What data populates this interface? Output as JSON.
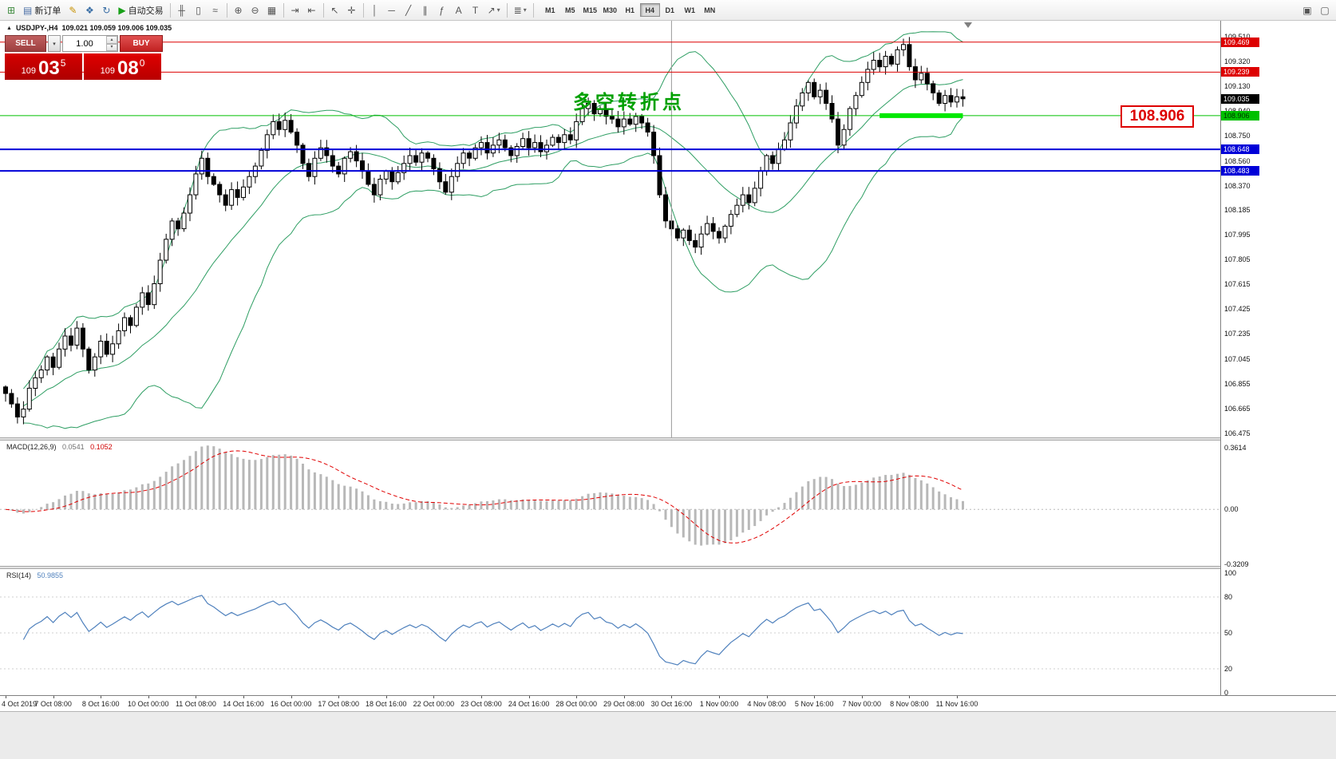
{
  "icons": {
    "caret_down": "▾",
    "caret_up": "▴",
    "collapse": "▲"
  },
  "colors": {
    "bollinger": "#2e9e63",
    "macd_bar": "#b8b8b8",
    "macd_signal": "#e00000",
    "rsi_line": "#4f81bd",
    "highlight": "#00e800",
    "resistance": "#dd0000",
    "support_blue": "#0000d8",
    "support_green": "#00c000",
    "sell_button": "#b25050",
    "buy_button": "#d23b3b",
    "price_panel": "#d40000"
  },
  "toolbar": {
    "items": [
      {
        "type": "icon",
        "name": "new-chart-icon",
        "glyph": "⊞",
        "color": "#3c8a3c"
      },
      {
        "type": "button",
        "name": "new-order-button",
        "glyph": "▤",
        "color": "#4a6fa5",
        "label": "新订单"
      },
      {
        "type": "icon",
        "name": "metaeditor-icon",
        "glyph": "✎",
        "color": "#c79100"
      },
      {
        "type": "icon",
        "name": "market-watch-icon",
        "glyph": "❖",
        "color": "#3a6ea5"
      },
      {
        "type": "icon",
        "name": "refresh-icon",
        "glyph": "↻",
        "color": "#3a6ea5"
      },
      {
        "type": "button",
        "name": "autotrading-button",
        "glyph": "▶",
        "color": "#18a018",
        "label": "自动交易"
      },
      {
        "type": "sep"
      },
      {
        "type": "icon",
        "name": "bar-chart-mode-icon",
        "glyph": "╫"
      },
      {
        "type": "icon",
        "name": "candlestick-mode-icon",
        "glyph": "▯"
      },
      {
        "type": "icon",
        "name": "line-chart-mode-icon",
        "glyph": "≈"
      },
      {
        "type": "sep"
      },
      {
        "type": "icon",
        "name": "zoom-in-icon",
        "glyph": "⊕"
      },
      {
        "type": "icon",
        "name": "zoom-out-icon",
        "glyph": "⊖"
      },
      {
        "type": "icon",
        "name": "tile-windows-icon",
        "glyph": "▦"
      },
      {
        "type": "sep"
      },
      {
        "type": "icon",
        "name": "auto-scroll-icon",
        "glyph": "⇥"
      },
      {
        "type": "icon",
        "name": "chart-shift-icon",
        "glyph": "⇤"
      },
      {
        "type": "sep"
      },
      {
        "type": "icon",
        "name": "cursor-icon",
        "glyph": "↖"
      },
      {
        "type": "icon",
        "name": "crosshair-icon",
        "glyph": "✛"
      },
      {
        "type": "sep"
      },
      {
        "type": "icon",
        "name": "vertical-line-icon",
        "glyph": "│"
      },
      {
        "type": "icon",
        "name": "horizontal-line-icon",
        "glyph": "─"
      },
      {
        "type": "icon",
        "name": "trendline-icon",
        "glyph": "╱"
      },
      {
        "type": "icon",
        "name": "equidistant-channel-icon",
        "glyph": "∥"
      },
      {
        "type": "icon",
        "name": "fibonacci-icon",
        "glyph": "ƒ"
      },
      {
        "type": "icon",
        "name": "text-icon",
        "glyph": "A"
      },
      {
        "type": "icon",
        "name": "text-label-icon",
        "glyph": "T"
      },
      {
        "type": "icon",
        "name": "arrows-tool-icon",
        "glyph": "↗",
        "caret": true
      },
      {
        "type": "sep"
      },
      {
        "type": "icon",
        "name": "indicator-list-icon",
        "glyph": "≣",
        "caret": true
      },
      {
        "type": "sep"
      }
    ],
    "timeframes": [
      "M1",
      "M5",
      "M15",
      "M30",
      "H1",
      "H4",
      "D1",
      "W1",
      "MN"
    ],
    "active_timeframe": "H4",
    "right_items": [
      {
        "name": "new-window-icon",
        "glyph": "▣"
      },
      {
        "name": "window-list-icon",
        "glyph": "▢"
      }
    ]
  },
  "trade_panel": {
    "sell_label": "SELL",
    "buy_label": "BUY",
    "volume": "1.00",
    "sell_price": {
      "prefix": "109",
      "big": "03",
      "sup": "5"
    },
    "buy_price": {
      "prefix": "109",
      "big": "08",
      "sup": "0"
    }
  },
  "chart": {
    "title": "USDJPY-,H4",
    "ohlc_text": "109.021 109.059 109.006 109.035",
    "annotation": "多空转折点",
    "level_callout": "108.906"
  },
  "indicators": {
    "macd": {
      "name": "MACD(12,26,9)",
      "value_main": "0.0541",
      "value_signal": "0.1052"
    },
    "rsi": {
      "name": "RSI(14)",
      "value": "50.9855"
    }
  },
  "chart_data": {
    "type": "candlestick",
    "symbol": "USDJPY-",
    "timeframe": "H4",
    "ohlc_current": {
      "open": 109.021,
      "high": 109.059,
      "low": 109.006,
      "close": 109.035
    },
    "current_price": 109.035,
    "main_range": [
      106.438,
      109.632
    ],
    "closes": [
      106.78,
      106.7,
      106.6,
      106.66,
      106.82,
      106.9,
      106.96,
      107.06,
      106.98,
      107.12,
      107.22,
      107.15,
      107.28,
      107.12,
      106.96,
      107.06,
      107.18,
      107.08,
      107.16,
      107.26,
      107.36,
      107.3,
      107.44,
      107.55,
      107.46,
      107.62,
      107.8,
      107.96,
      108.1,
      108.04,
      108.16,
      108.3,
      108.46,
      108.58,
      108.44,
      108.38,
      108.3,
      108.22,
      108.34,
      108.28,
      108.36,
      108.44,
      108.52,
      108.64,
      108.76,
      108.86,
      108.8,
      108.87,
      108.78,
      108.68,
      108.54,
      108.44,
      108.58,
      108.66,
      108.6,
      108.52,
      108.46,
      108.58,
      108.63,
      108.56,
      108.48,
      108.38,
      108.3,
      108.42,
      108.48,
      108.4,
      108.47,
      108.54,
      108.6,
      108.55,
      108.62,
      108.58,
      108.5,
      108.4,
      108.32,
      108.44,
      108.54,
      108.62,
      108.58,
      108.66,
      108.7,
      108.62,
      108.68,
      108.72,
      108.66,
      108.6,
      108.67,
      108.73,
      108.66,
      108.7,
      108.63,
      108.68,
      108.74,
      108.7,
      108.76,
      108.72,
      108.86,
      108.96,
      109.0,
      108.92,
      108.96,
      108.9,
      108.88,
      108.82,
      108.88,
      108.84,
      108.9,
      108.85,
      108.78,
      108.6,
      108.3,
      108.1,
      108.04,
      107.97,
      108.03,
      107.95,
      107.9,
      108.0,
      108.08,
      108.02,
      107.97,
      108.06,
      108.15,
      108.22,
      108.3,
      108.24,
      108.35,
      108.48,
      108.6,
      108.54,
      108.65,
      108.72,
      108.85,
      108.98,
      109.08,
      109.16,
      109.05,
      109.1,
      109.0,
      108.88,
      108.68,
      108.8,
      108.96,
      109.06,
      109.16,
      109.26,
      109.33,
      109.28,
      109.36,
      109.3,
      109.41,
      109.45,
      109.28,
      109.18,
      109.23,
      109.15,
      109.08,
      109.0,
      109.06,
      109.01,
      109.05,
      109.035
    ],
    "bollinger": {
      "period": 20,
      "deviation": 2
    },
    "levels": [
      {
        "price": 109.469,
        "color": "#dd0000",
        "width": 1,
        "tag": "109.469",
        "tag_text": "#ffffff"
      },
      {
        "price": 109.239,
        "color": "#dd0000",
        "width": 1,
        "tag": "109.239",
        "tag_text": "#ffffff"
      },
      {
        "price": 108.906,
        "color": "#00c000",
        "width": 1,
        "tag": "108.906",
        "tag_text": "#003300"
      },
      {
        "price": 108.648,
        "color": "#0000d8",
        "width": 2,
        "tag": "108.648",
        "tag_text": "#ffffff"
      },
      {
        "price": 108.483,
        "color": "#0000d8",
        "width": 2,
        "tag": "108.483",
        "tag_text": "#ffffff"
      }
    ],
    "highlight_segment": {
      "price": 108.906,
      "from_idx": 147,
      "to_idx": 161
    },
    "vline_idx": 112,
    "price_ticks": [
      "109.510",
      "109.320",
      "109.130",
      "108.940",
      "108.750",
      "108.560",
      "108.370",
      "108.185",
      "107.995",
      "107.805",
      "107.615",
      "107.425",
      "107.235",
      "107.045",
      "106.855",
      "106.665",
      "106.475"
    ],
    "time_labels": [
      {
        "idx": 0,
        "text": "4 Oct 2019"
      },
      {
        "idx": 8,
        "text": "7 Oct 08:00"
      },
      {
        "idx": 16,
        "text": "8 Oct 16:00"
      },
      {
        "idx": 24,
        "text": "10 Oct 00:00"
      },
      {
        "idx": 32,
        "text": "11 Oct 08:00"
      },
      {
        "idx": 40,
        "text": "14 Oct 16:00"
      },
      {
        "idx": 48,
        "text": "16 Oct 00:00"
      },
      {
        "idx": 56,
        "text": "17 Oct 08:00"
      },
      {
        "idx": 64,
        "text": "18 Oct 16:00"
      },
      {
        "idx": 72,
        "text": "22 Oct 00:00"
      },
      {
        "idx": 80,
        "text": "23 Oct 08:00"
      },
      {
        "idx": 88,
        "text": "24 Oct 16:00"
      },
      {
        "idx": 96,
        "text": "28 Oct 00:00"
      },
      {
        "idx": 104,
        "text": "29 Oct 08:00"
      },
      {
        "idx": 112,
        "text": "30 Oct 16:00"
      },
      {
        "idx": 120,
        "text": "1 Nov 00:00"
      },
      {
        "idx": 128,
        "text": "4 Nov 08:00"
      },
      {
        "idx": 136,
        "text": "5 Nov 16:00"
      },
      {
        "idx": 144,
        "text": "7 Nov 00:00"
      },
      {
        "idx": 152,
        "text": "8 Nov 08:00"
      },
      {
        "idx": 160,
        "text": "11 Nov 16:00"
      }
    ],
    "macd": {
      "range": [
        -0.335,
        0.403
      ],
      "ticks": [
        "0.3614",
        "0.00",
        "-0.3209"
      ]
    },
    "rsi": {
      "range": [
        0,
        100
      ],
      "ticks": [
        100,
        80,
        50,
        20,
        0
      ],
      "grid_levels": [
        80,
        50,
        20
      ]
    }
  }
}
